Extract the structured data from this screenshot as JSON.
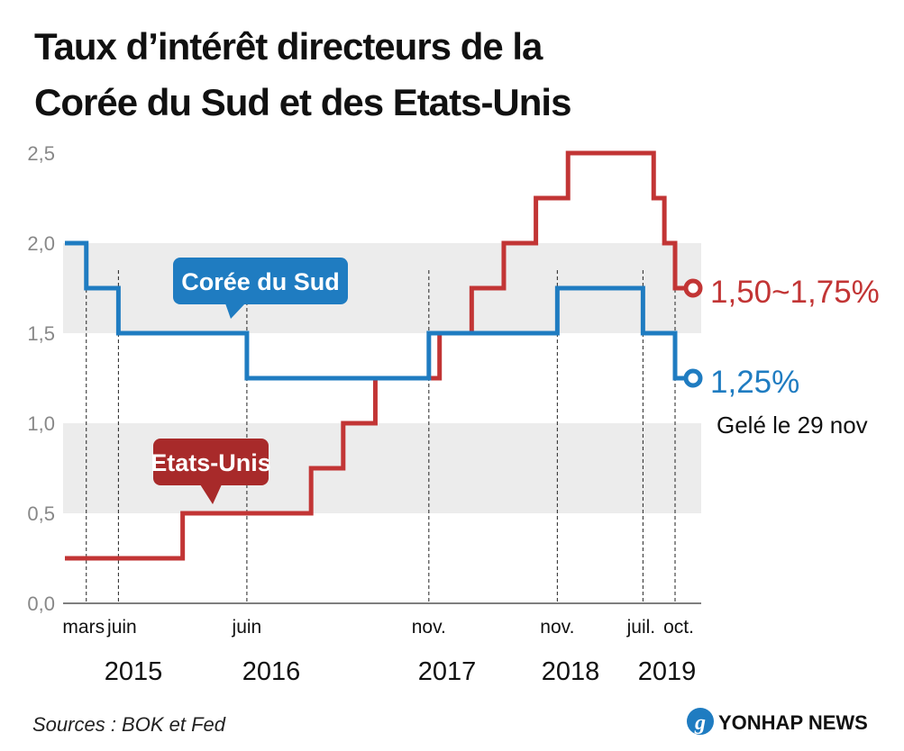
{
  "chart_data": {
    "type": "line",
    "title_lines": [
      "Taux d’intérêt directeurs de la",
      "Corée du Sud et des Etats-Unis"
    ],
    "xlabel": "",
    "ylabel": "",
    "ylim": [
      0,
      2.5
    ],
    "y_ticks": [
      {
        "value": 0.0,
        "label": "0,0"
      },
      {
        "value": 0.5,
        "label": "0,5"
      },
      {
        "value": 1.0,
        "label": "1,0"
      },
      {
        "value": 1.5,
        "label": "1,5"
      },
      {
        "value": 2.0,
        "label": "2,0"
      },
      {
        "value": 2.5,
        "label": "2,5"
      }
    ],
    "grid": "alternating horizontal bands",
    "x_month_labels": [
      {
        "label": "mars",
        "date": "2015-03"
      },
      {
        "label": "juin",
        "date": "2015-06"
      },
      {
        "label": "juin",
        "date": "2016-06"
      },
      {
        "label": "nov.",
        "date": "2017-11"
      },
      {
        "label": "nov.",
        "date": "2018-11"
      },
      {
        "label": "juil.",
        "date": "2019-07"
      },
      {
        "label": "oct.",
        "date": "2019-10"
      }
    ],
    "x_year_labels": [
      "2015",
      "2016",
      "2017",
      "2018",
      "2019"
    ],
    "series": [
      {
        "name": "Corée du Sud",
        "color": "#1f7cc1",
        "steps": [
          {
            "date": "2015-01",
            "value": 2.0
          },
          {
            "date": "2015-03",
            "value": 1.75
          },
          {
            "date": "2015-06",
            "value": 1.5
          },
          {
            "date": "2016-06",
            "value": 1.25
          },
          {
            "date": "2017-11",
            "value": 1.5
          },
          {
            "date": "2018-11",
            "value": 1.75
          },
          {
            "date": "2019-07",
            "value": 1.5
          },
          {
            "date": "2019-10",
            "value": 1.25
          }
        ],
        "end_label": "1,25%",
        "end_note": "Gelé le 29 nov"
      },
      {
        "name": "Etats-Unis",
        "color": "#c23535",
        "steps": [
          {
            "date": "2015-01",
            "value": 0.25
          },
          {
            "date": "2015-12",
            "value": 0.5
          },
          {
            "date": "2016-12",
            "value": 0.75
          },
          {
            "date": "2017-03",
            "value": 1.0
          },
          {
            "date": "2017-06",
            "value": 1.25
          },
          {
            "date": "2017-12",
            "value": 1.5
          },
          {
            "date": "2018-03",
            "value": 1.75
          },
          {
            "date": "2018-06",
            "value": 2.0
          },
          {
            "date": "2018-09",
            "value": 2.25
          },
          {
            "date": "2018-12",
            "value": 2.5
          },
          {
            "date": "2019-08",
            "value": 2.25
          },
          {
            "date": "2019-09",
            "value": 2.0
          },
          {
            "date": "2019-10",
            "value": 1.75
          }
        ],
        "end_label": "1,50~1,75%"
      }
    ],
    "source": "Sources : BOK et Fed",
    "credit": "YONHAP NEWS"
  }
}
